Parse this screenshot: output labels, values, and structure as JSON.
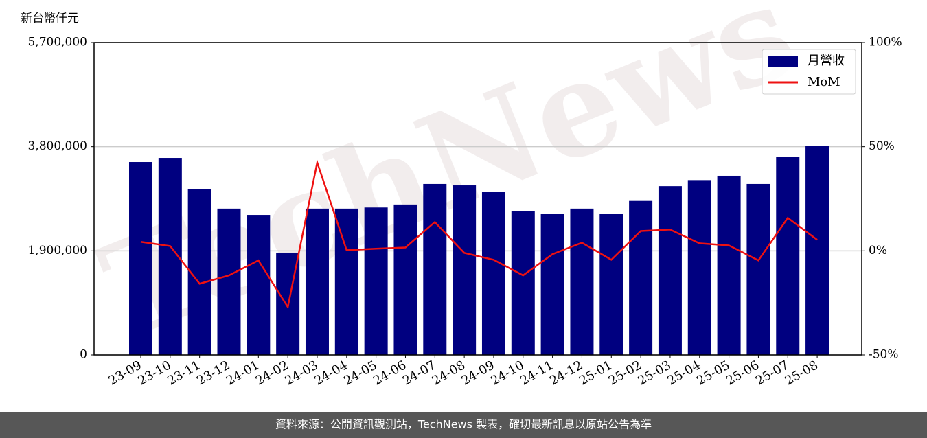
{
  "chart_data": {
    "type": "bar",
    "ylabel": "新台幣仟元",
    "watermark": "TechNews",
    "footer": "資料來源：公開資訊觀測站，TechNews 製表，確切最新訊息以原站公告為準",
    "categories": [
      "23-09",
      "23-10",
      "23-11",
      "23-12",
      "24-01",
      "24-02",
      "24-03",
      "24-04",
      "24-05",
      "24-06",
      "24-07",
      "24-08",
      "24-09",
      "24-10",
      "24-11",
      "24-12",
      "25-01",
      "25-02",
      "25-03",
      "25-04",
      "25-05",
      "25-06",
      "25-07",
      "25-08"
    ],
    "series": [
      {
        "name": "月營收",
        "type": "bar",
        "color": "#000080",
        "values": [
          3520000,
          3595000,
          3030000,
          2670000,
          2555000,
          1867000,
          2670000,
          2670000,
          2690000,
          2745000,
          3120000,
          3094000,
          2970000,
          2620000,
          2580000,
          2670000,
          2570000,
          2810000,
          3080000,
          3190000,
          3270000,
          3120000,
          3620000,
          3810000
        ]
      },
      {
        "name": "MoM",
        "type": "line",
        "axis": "y2",
        "color": "#ee1111",
        "values": [
          4.3,
          2.3,
          -15.8,
          -11.8,
          -4.6,
          -27,
          42.4,
          0.3,
          1,
          1.6,
          13.8,
          -1,
          -4.3,
          -11.8,
          -1.6,
          3.9,
          -4.3,
          9.5,
          10.2,
          3.6,
          2.6,
          -4.6,
          15.8,
          5.3
        ]
      }
    ],
    "ylim": [
      0,
      5700000
    ],
    "yticks": [
      {
        "value": 0,
        "label": "0"
      },
      {
        "value": 1900000,
        "label": "1,900,000"
      },
      {
        "value": 3800000,
        "label": "3,800,000"
      },
      {
        "value": 5700000,
        "label": "5,700,000"
      }
    ],
    "y2lim": [
      -50,
      100
    ],
    "y2ticks": [
      {
        "value": -50,
        "label": "-50%"
      },
      {
        "value": 0,
        "label": "0%"
      },
      {
        "value": 50,
        "label": "50%"
      },
      {
        "value": 100,
        "label": "100%"
      }
    ],
    "grid": true,
    "legend": "upper right"
  }
}
